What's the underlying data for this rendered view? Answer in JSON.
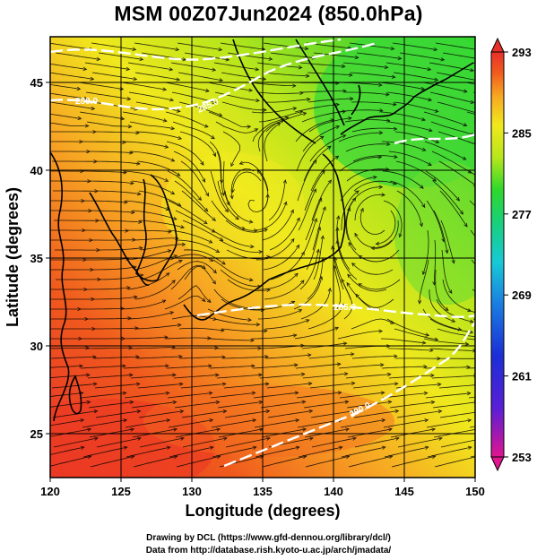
{
  "title": "MSM 00Z07Jun2024 (850.0hPa)",
  "x_axis": {
    "label": "Longitude (degrees)",
    "range": [
      120,
      150
    ],
    "ticks": [
      120,
      125,
      130,
      135,
      140,
      145,
      150
    ]
  },
  "y_axis": {
    "label": "Latitude  (degrees)",
    "range": [
      22.5,
      47.6
    ],
    "ticks": [
      25,
      30,
      35,
      40,
      45
    ]
  },
  "colorbar": {
    "range": [
      253,
      293
    ],
    "tick_labels": [
      "293",
      "285",
      "277",
      "269",
      "261",
      "253"
    ],
    "colors": [
      "#e0158f",
      "#5a1fd6",
      "#1b2ed6",
      "#1a7fe0",
      "#18c9d6",
      "#19d07a",
      "#2fd82b",
      "#b8e61c",
      "#f0e81d",
      "#f7a823",
      "#f05a1d",
      "#e8302a"
    ]
  },
  "contour_labels": [
    "280.0",
    "285.0",
    "285.0",
    "290.0"
  ],
  "footer": {
    "line1": "Drawing by DCL (https://www.gfd-dennou.org/library/dcl/)",
    "line2": "Data from http://database.rish.kyoto-u.ac.jp/arch/jmadata/"
  }
}
